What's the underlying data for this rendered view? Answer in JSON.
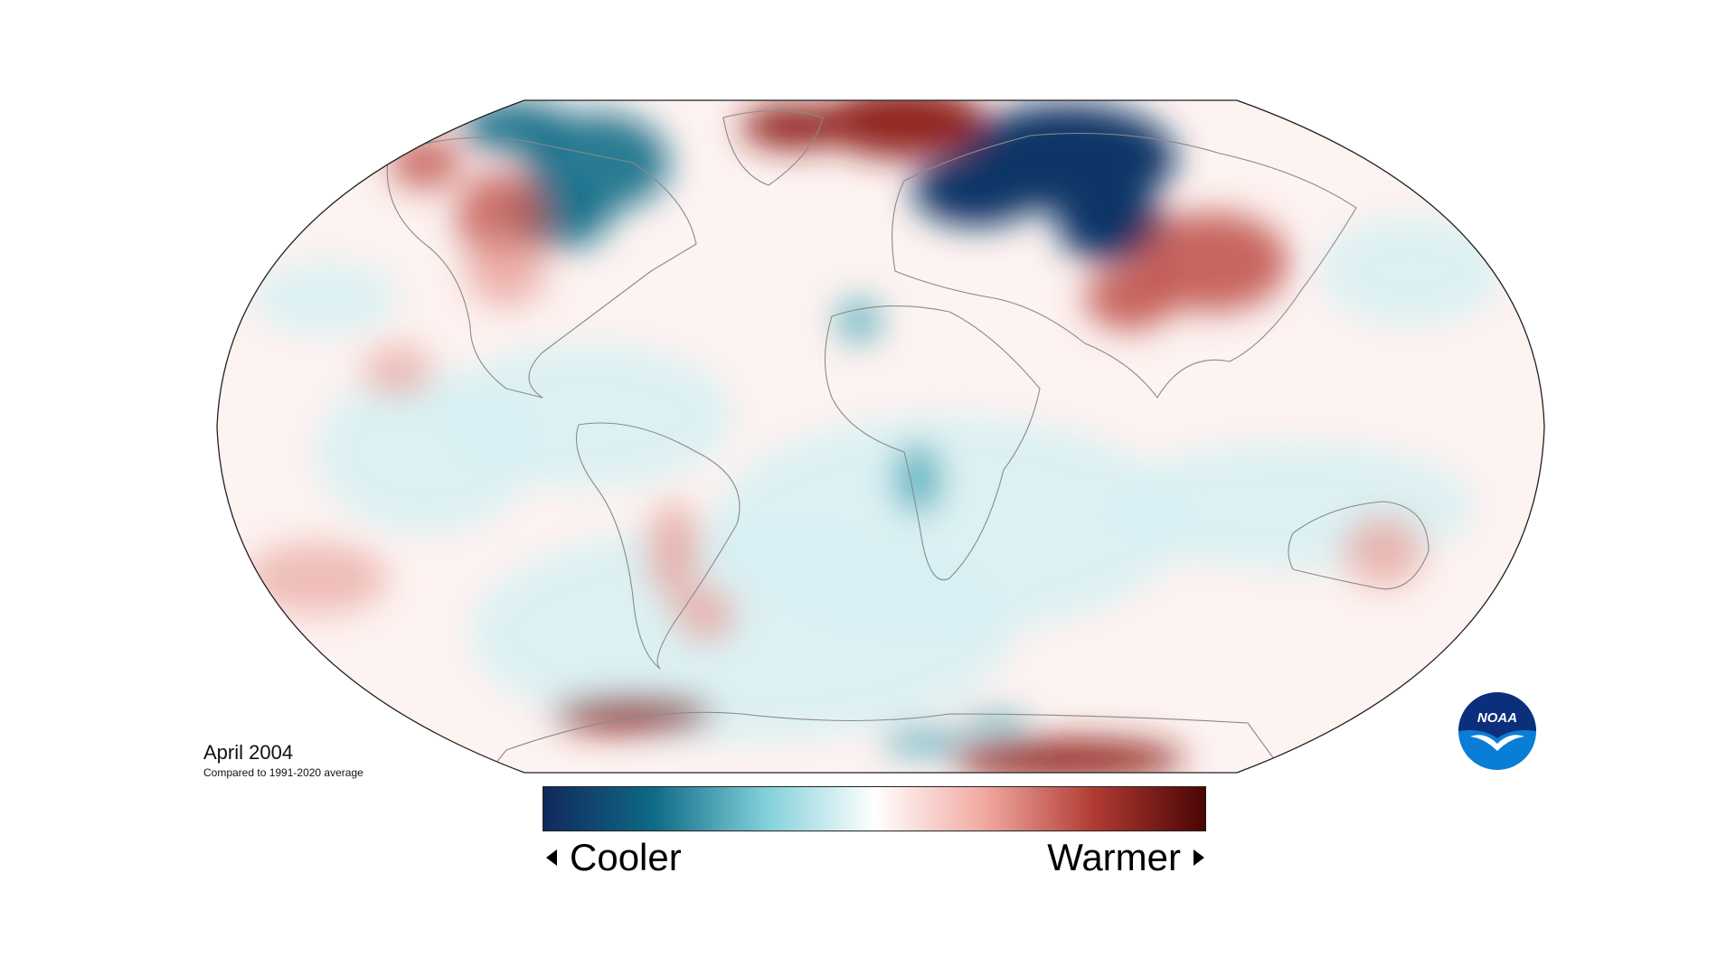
{
  "map": {
    "type": "global-temperature-anomaly",
    "projection": "Robinson",
    "anomaly_regions": [
      {
        "region": "northern-siberia",
        "sign": "cooler",
        "intensity": 1.0
      },
      {
        "region": "eastern-canada-arctic",
        "sign": "cooler",
        "intensity": 0.75
      },
      {
        "region": "greenland-sea",
        "sign": "warmer",
        "intensity": 0.9
      },
      {
        "region": "alaska-yukon",
        "sign": "warmer",
        "intensity": 0.55
      },
      {
        "region": "western-north-america",
        "sign": "warmer",
        "intensity": 0.45
      },
      {
        "region": "central-china-tibet",
        "sign": "warmer",
        "intensity": 0.75
      },
      {
        "region": "southeast-south-america",
        "sign": "warmer",
        "intensity": 0.5
      },
      {
        "region": "australia",
        "sign": "warmer",
        "intensity": 0.4
      },
      {
        "region": "equatorial-west-africa",
        "sign": "cooler",
        "intensity": 0.6
      },
      {
        "region": "west-africa-sahel",
        "sign": "cooler",
        "intensity": 0.55
      },
      {
        "region": "antarctica-coast-south",
        "sign": "warmer",
        "intensity": 0.85
      },
      {
        "region": "antarctica-weddell",
        "sign": "cooler",
        "intensity": 0.5
      },
      {
        "region": "south-pacific-east",
        "sign": "warmer",
        "intensity": 0.25
      }
    ]
  },
  "caption": {
    "title": "April 2004",
    "subtitle": "Compared to 1991-2020 average"
  },
  "legend": {
    "left_label": "Cooler",
    "right_label": "Warmer",
    "colors": [
      "#11285c",
      "#0f6a86",
      "#7fcfd9",
      "#ffffff",
      "#f0a9a0",
      "#b03a32",
      "#4a0505"
    ]
  },
  "logo": {
    "text": "NOAA",
    "icon": "noaa-logo-icon",
    "colors": {
      "top": "#0b2f7a",
      "bottom": "#0a7dd6",
      "bird": "#ffffff"
    }
  }
}
